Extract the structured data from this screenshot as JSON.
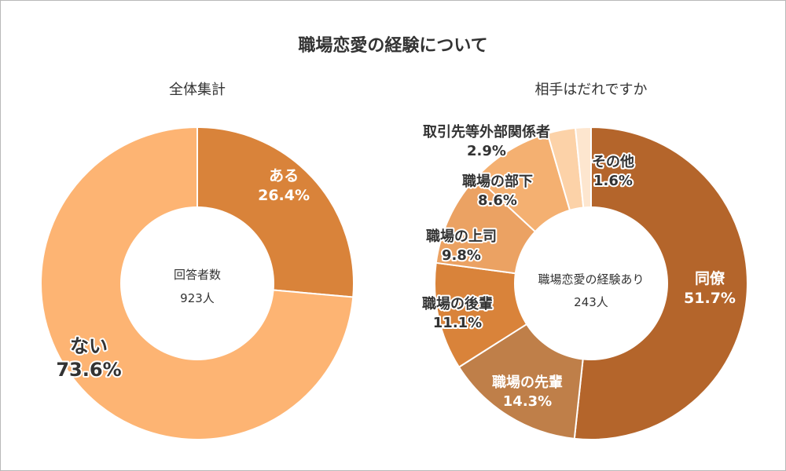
{
  "title": "職場恋愛の経験について",
  "colors": {
    "text_dark": "#333333",
    "label_on_slice": "#ffffff",
    "outline_label": "#ffffff"
  },
  "chart_data": [
    {
      "type": "pie",
      "subtitle": "全体集計",
      "center_label": "回答者数",
      "center_value": "923人",
      "slices": [
        {
          "name": "ある",
          "value": 26.4,
          "value_label": "26.4%",
          "color": "#d9833a"
        },
        {
          "name": "ない",
          "value": 73.6,
          "value_label": "73.6%",
          "color": "#fdb473"
        }
      ]
    },
    {
      "type": "pie",
      "subtitle": "相手はだれですか",
      "center_label": "職場恋愛の経験あり",
      "center_value": "243人",
      "slices": [
        {
          "name": "同僚",
          "value": 51.7,
          "value_label": "51.7%",
          "color": "#b4652b"
        },
        {
          "name": "職場の先輩",
          "value": 14.3,
          "value_label": "14.3%",
          "color": "#bf7f49"
        },
        {
          "name": "職場の後輩",
          "value": 11.1,
          "value_label": "11.1%",
          "color": "#d9833a"
        },
        {
          "name": "職場の上司",
          "value": 9.8,
          "value_label": "9.8%",
          "color": "#eba263"
        },
        {
          "name": "職場の部下",
          "value": 8.6,
          "value_label": "8.6%",
          "color": "#f4b071"
        },
        {
          "name": "取引先等外部関係者",
          "value": 2.9,
          "value_label": "2.9%",
          "color": "#fcd2a8"
        },
        {
          "name": "その他",
          "value": 1.6,
          "value_label": "1.6%",
          "color": "#fde6cf"
        }
      ]
    }
  ]
}
